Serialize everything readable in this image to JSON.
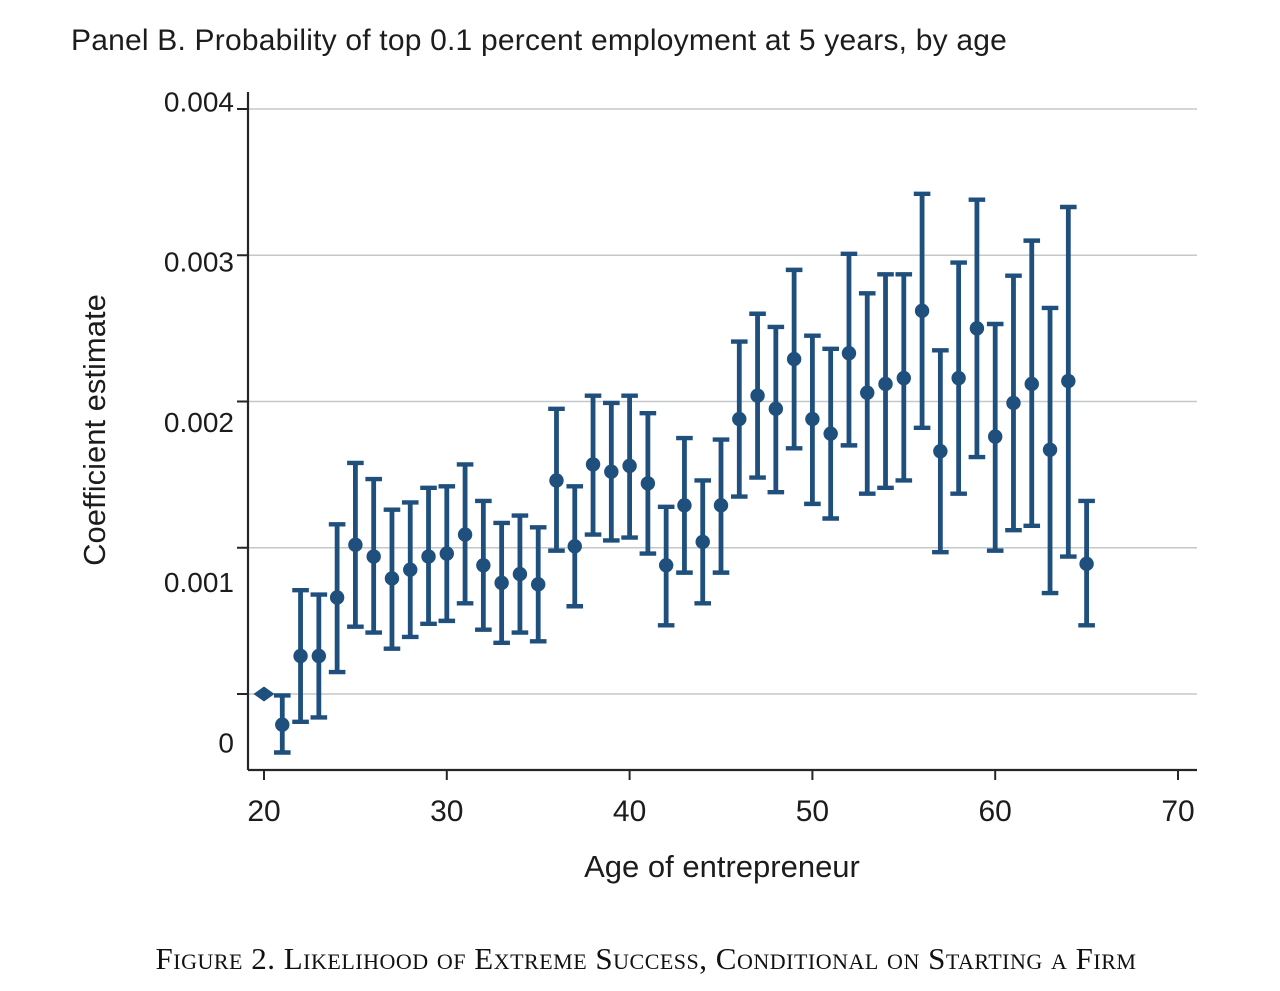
{
  "figure": {
    "panel_title": "Panel B. Probability of top 0.1 percent employment at 5 years, by age",
    "caption": "Figure 2. Likelihood of Extreme Success, Conditional on Starting a Firm"
  },
  "colors": {
    "marker": "#1f4f7d",
    "gridline": "#c5c7c9",
    "axis": "#262626",
    "text": "#1c1c1c"
  },
  "chart_data": {
    "type": "scatter",
    "subtype": "coefficient-estimates-with-95ci-error-bars",
    "title": "Panel B. Probability of top 0.1 percent employment at 5 years, by age",
    "xlabel": "Age of entrepreneur",
    "ylabel": "Coefficient estimate",
    "xlim": [
      19.1,
      71
    ],
    "ylim": [
      -0.00052,
      0.00412
    ],
    "x_ticks": [
      20,
      30,
      40,
      50,
      60,
      70
    ],
    "y_ticks": [
      0,
      0.001,
      0.002,
      0.003,
      0.004
    ],
    "y_tick_labels": [
      "0",
      "0.001",
      "0.002",
      "0.003",
      "0.004"
    ],
    "grid": "horizontal",
    "legend": "none",
    "series": [
      {
        "name": "Coefficient estimate (95% CI), reference age 20 shown as diamond at 0",
        "points": [
          {
            "age": 20,
            "est": 0.0,
            "lo": null,
            "hi": null,
            "marker": "diamond"
          },
          {
            "age": 21,
            "est": -0.00021,
            "lo": -0.0004,
            "hi": -1e-05,
            "marker": "circle"
          },
          {
            "age": 22,
            "est": 0.00026,
            "lo": -0.00019,
            "hi": 0.00071,
            "marker": "circle"
          },
          {
            "age": 23,
            "est": 0.00026,
            "lo": -0.00016,
            "hi": 0.00068,
            "marker": "circle"
          },
          {
            "age": 24,
            "est": 0.00066,
            "lo": 0.00015,
            "hi": 0.00116,
            "marker": "circle"
          },
          {
            "age": 25,
            "est": 0.00102,
            "lo": 0.00046,
            "hi": 0.00158,
            "marker": "circle"
          },
          {
            "age": 26,
            "est": 0.00094,
            "lo": 0.00042,
            "hi": 0.00147,
            "marker": "circle"
          },
          {
            "age": 27,
            "est": 0.00079,
            "lo": 0.00031,
            "hi": 0.00126,
            "marker": "circle"
          },
          {
            "age": 28,
            "est": 0.00085,
            "lo": 0.00039,
            "hi": 0.00131,
            "marker": "circle"
          },
          {
            "age": 29,
            "est": 0.00094,
            "lo": 0.00048,
            "hi": 0.00141,
            "marker": "circle"
          },
          {
            "age": 30,
            "est": 0.00096,
            "lo": 0.0005,
            "hi": 0.00142,
            "marker": "circle"
          },
          {
            "age": 31,
            "est": 0.00109,
            "lo": 0.00062,
            "hi": 0.00157,
            "marker": "circle"
          },
          {
            "age": 32,
            "est": 0.00088,
            "lo": 0.00044,
            "hi": 0.00132,
            "marker": "circle"
          },
          {
            "age": 33,
            "est": 0.00076,
            "lo": 0.00035,
            "hi": 0.00117,
            "marker": "circle"
          },
          {
            "age": 34,
            "est": 0.00082,
            "lo": 0.00042,
            "hi": 0.00122,
            "marker": "circle"
          },
          {
            "age": 35,
            "est": 0.00075,
            "lo": 0.00036,
            "hi": 0.00114,
            "marker": "circle"
          },
          {
            "age": 36,
            "est": 0.00146,
            "lo": 0.00098,
            "hi": 0.00195,
            "marker": "circle"
          },
          {
            "age": 37,
            "est": 0.00101,
            "lo": 0.0006,
            "hi": 0.00142,
            "marker": "circle"
          },
          {
            "age": 38,
            "est": 0.00157,
            "lo": 0.00109,
            "hi": 0.00204,
            "marker": "circle"
          },
          {
            "age": 39,
            "est": 0.00152,
            "lo": 0.00105,
            "hi": 0.00199,
            "marker": "circle"
          },
          {
            "age": 40,
            "est": 0.00156,
            "lo": 0.00107,
            "hi": 0.00204,
            "marker": "circle"
          },
          {
            "age": 41,
            "est": 0.00144,
            "lo": 0.00096,
            "hi": 0.00192,
            "marker": "circle"
          },
          {
            "age": 42,
            "est": 0.00088,
            "lo": 0.00047,
            "hi": 0.00128,
            "marker": "circle"
          },
          {
            "age": 43,
            "est": 0.00129,
            "lo": 0.00083,
            "hi": 0.00175,
            "marker": "circle"
          },
          {
            "age": 44,
            "est": 0.00104,
            "lo": 0.00062,
            "hi": 0.00146,
            "marker": "circle"
          },
          {
            "age": 45,
            "est": 0.00129,
            "lo": 0.00083,
            "hi": 0.00174,
            "marker": "circle"
          },
          {
            "age": 46,
            "est": 0.00188,
            "lo": 0.00135,
            "hi": 0.00241,
            "marker": "circle"
          },
          {
            "age": 47,
            "est": 0.00204,
            "lo": 0.00148,
            "hi": 0.0026,
            "marker": "circle"
          },
          {
            "age": 48,
            "est": 0.00195,
            "lo": 0.00138,
            "hi": 0.00251,
            "marker": "circle"
          },
          {
            "age": 49,
            "est": 0.00229,
            "lo": 0.00168,
            "hi": 0.0029,
            "marker": "circle"
          },
          {
            "age": 50,
            "est": 0.00188,
            "lo": 0.0013,
            "hi": 0.00245,
            "marker": "circle"
          },
          {
            "age": 51,
            "est": 0.00178,
            "lo": 0.0012,
            "hi": 0.00236,
            "marker": "circle"
          },
          {
            "age": 52,
            "est": 0.00233,
            "lo": 0.0017,
            "hi": 0.00301,
            "marker": "circle"
          },
          {
            "age": 53,
            "est": 0.00206,
            "lo": 0.00137,
            "hi": 0.00274,
            "marker": "circle"
          },
          {
            "age": 54,
            "est": 0.00212,
            "lo": 0.00141,
            "hi": 0.00287,
            "marker": "circle"
          },
          {
            "age": 55,
            "est": 0.00216,
            "lo": 0.00146,
            "hi": 0.00287,
            "marker": "circle"
          },
          {
            "age": 56,
            "est": 0.00262,
            "lo": 0.00182,
            "hi": 0.00342,
            "marker": "circle"
          },
          {
            "age": 57,
            "est": 0.00166,
            "lo": 0.00097,
            "hi": 0.00235,
            "marker": "circle"
          },
          {
            "age": 58,
            "est": 0.00216,
            "lo": 0.00137,
            "hi": 0.00295,
            "marker": "circle"
          },
          {
            "age": 59,
            "est": 0.0025,
            "lo": 0.00162,
            "hi": 0.00338,
            "marker": "circle"
          },
          {
            "age": 60,
            "est": 0.00176,
            "lo": 0.00098,
            "hi": 0.00253,
            "marker": "circle"
          },
          {
            "age": 61,
            "est": 0.00199,
            "lo": 0.00112,
            "hi": 0.00286,
            "marker": "circle"
          },
          {
            "age": 62,
            "est": 0.00212,
            "lo": 0.00115,
            "hi": 0.0031,
            "marker": "circle"
          },
          {
            "age": 63,
            "est": 0.00167,
            "lo": 0.00069,
            "hi": 0.00264,
            "marker": "circle"
          },
          {
            "age": 64,
            "est": 0.00214,
            "lo": 0.00094,
            "hi": 0.00333,
            "marker": "circle"
          },
          {
            "age": 65,
            "est": 0.00089,
            "lo": 0.00047,
            "hi": 0.00132,
            "marker": "circle"
          }
        ]
      }
    ]
  }
}
